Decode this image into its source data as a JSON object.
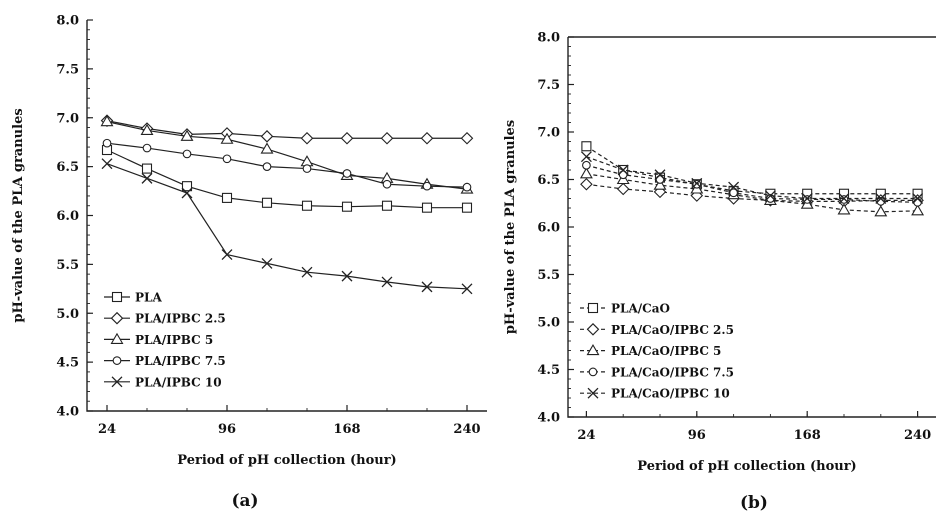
{
  "chart_data": [
    {
      "type": "line",
      "caption": "(a)",
      "xlabel": "Period of pH collection (hour)",
      "ylabel": "pH-value of the PLA granules",
      "x_ticks": [
        24,
        96,
        168,
        240
      ],
      "y_ticks": [
        "4.0",
        "4.5",
        "5.0",
        "5.5",
        "6.0",
        "6.5",
        "7.0",
        "7.5",
        "8.0"
      ],
      "xlim": [
        12,
        252
      ],
      "ylim": [
        4.0,
        8.0
      ],
      "grid": false,
      "legend_position": "bottom-left",
      "series": [
        {
          "name": "PLA",
          "marker": "square",
          "dash": "solid",
          "x": [
            24,
            48,
            72,
            96,
            120,
            144,
            168,
            192,
            216,
            240
          ],
          "y": [
            6.67,
            6.48,
            6.3,
            6.18,
            6.13,
            6.1,
            6.09,
            6.1,
            6.08,
            6.08
          ]
        },
        {
          "name": "PLA/IPBC 2.5",
          "marker": "diamond",
          "dash": "solid",
          "x": [
            24,
            48,
            72,
            96,
            120,
            144,
            168,
            192,
            216,
            240
          ],
          "y": [
            6.97,
            6.89,
            6.83,
            6.84,
            6.81,
            6.79,
            6.79,
            6.79,
            6.79,
            6.79
          ]
        },
        {
          "name": "PLA/IPBC 5",
          "marker": "triangle",
          "dash": "solid",
          "x": [
            24,
            48,
            72,
            96,
            120,
            144,
            168,
            192,
            216,
            240
          ],
          "y": [
            6.96,
            6.87,
            6.81,
            6.78,
            6.68,
            6.55,
            6.41,
            6.38,
            6.32,
            6.27
          ]
        },
        {
          "name": "PLA/IPBC 7.5",
          "marker": "circle",
          "dash": "solid",
          "x": [
            24,
            48,
            72,
            96,
            120,
            144,
            168,
            192,
            216,
            240
          ],
          "y": [
            6.74,
            6.69,
            6.63,
            6.58,
            6.5,
            6.48,
            6.43,
            6.32,
            6.3,
            6.29
          ]
        },
        {
          "name": "PLA/IPBC 10",
          "marker": "x",
          "dash": "solid",
          "x": [
            24,
            48,
            72,
            96,
            120,
            144,
            168,
            192,
            216,
            240
          ],
          "y": [
            6.53,
            6.38,
            6.23,
            5.6,
            5.51,
            5.42,
            5.38,
            5.32,
            5.27,
            5.25
          ]
        }
      ]
    },
    {
      "type": "line",
      "caption": "(b)",
      "xlabel": "Period of pH collection (hour)",
      "ylabel": "pH-value of the PLA granules",
      "x_ticks": [
        24,
        96,
        168,
        240
      ],
      "y_ticks": [
        "4.0",
        "4.5",
        "5.0",
        "5.5",
        "6.0",
        "6.5",
        "7.0",
        "7.5",
        "8.0"
      ],
      "xlim": [
        12,
        252
      ],
      "ylim": [
        4.0,
        8.0
      ],
      "grid": false,
      "legend_position": "bottom-left",
      "series": [
        {
          "name": "PLA/CaO",
          "marker": "square",
          "dash": "dashed",
          "x": [
            24,
            48,
            72,
            96,
            120,
            144,
            168,
            192,
            216,
            240
          ],
          "y": [
            6.85,
            6.6,
            6.52,
            6.45,
            6.38,
            6.35,
            6.35,
            6.35,
            6.35,
            6.35
          ]
        },
        {
          "name": "PLA/CaO/IPBC 2.5",
          "marker": "diamond",
          "dash": "dashed",
          "x": [
            24,
            48,
            72,
            96,
            120,
            144,
            168,
            192,
            216,
            240
          ],
          "y": [
            6.45,
            6.4,
            6.37,
            6.33,
            6.3,
            6.28,
            6.27,
            6.27,
            6.28,
            6.28
          ]
        },
        {
          "name": "PLA/CaO/IPBC 5",
          "marker": "triangle",
          "dash": "dashed",
          "x": [
            24,
            48,
            72,
            96,
            120,
            144,
            168,
            192,
            216,
            240
          ],
          "y": [
            6.56,
            6.5,
            6.44,
            6.4,
            6.34,
            6.28,
            6.24,
            6.18,
            6.16,
            6.17
          ]
        },
        {
          "name": "PLA/CaO/IPBC 7.5",
          "marker": "circle",
          "dash": "dashed",
          "x": [
            24,
            48,
            72,
            96,
            120,
            144,
            168,
            192,
            216,
            240
          ],
          "y": [
            6.65,
            6.55,
            6.5,
            6.45,
            6.36,
            6.3,
            6.29,
            6.29,
            6.27,
            6.26
          ]
        },
        {
          "name": "PLA/CaO/IPBC 10",
          "marker": "x",
          "dash": "dashed",
          "x": [
            24,
            48,
            72,
            96,
            120,
            144,
            168,
            192,
            216,
            240
          ],
          "y": [
            6.74,
            6.6,
            6.55,
            6.46,
            6.42,
            6.33,
            6.3,
            6.3,
            6.3,
            6.3
          ]
        }
      ]
    }
  ]
}
